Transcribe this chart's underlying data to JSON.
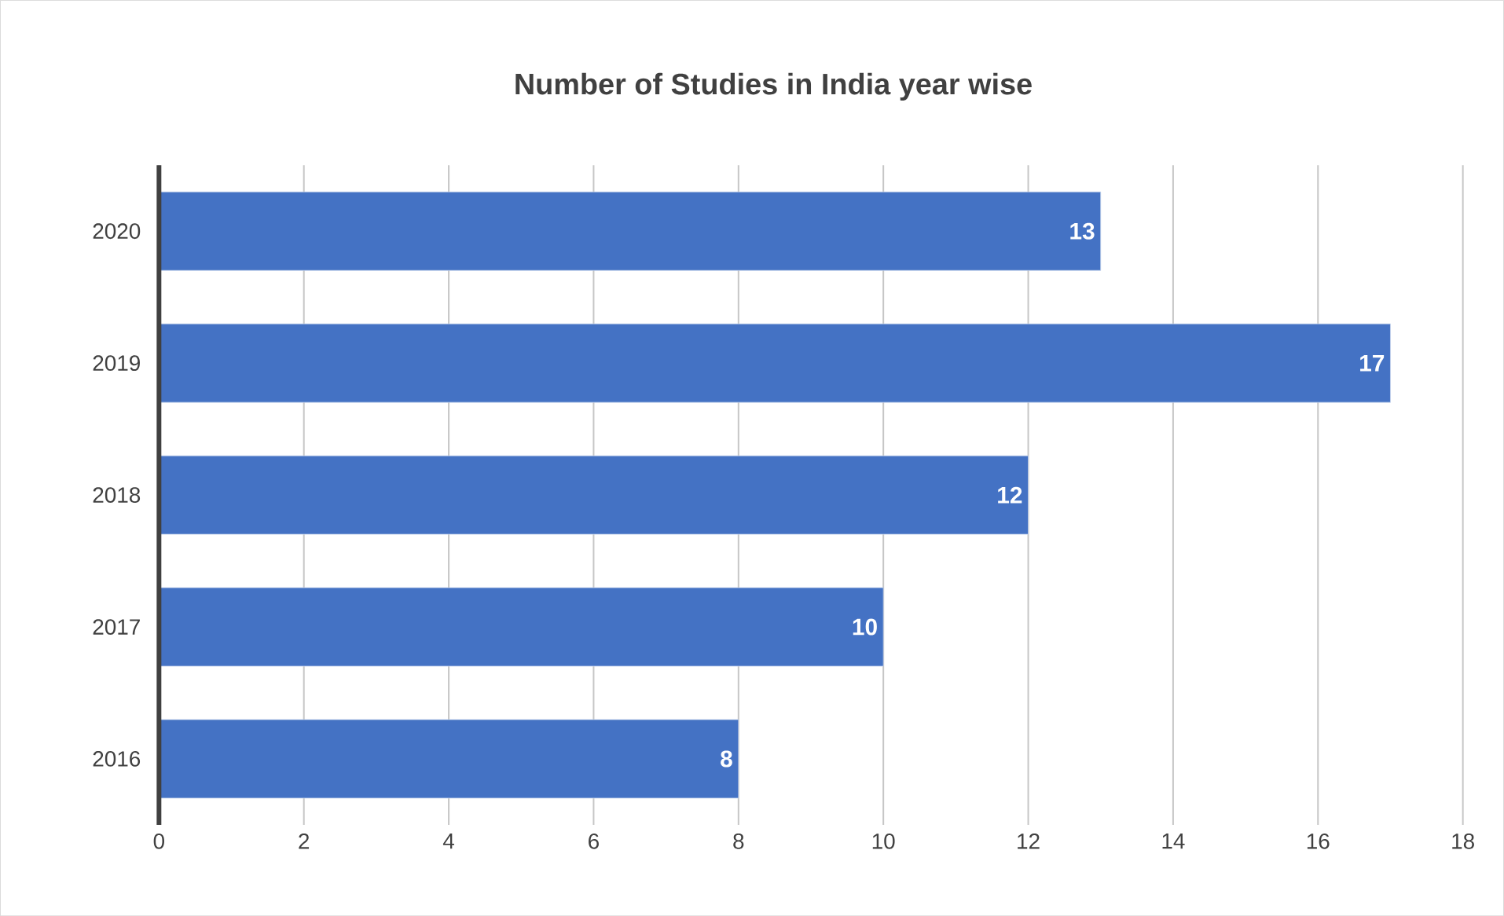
{
  "chart_data": {
    "type": "bar",
    "orientation": "horizontal",
    "title": "Number of Studies in India year wise",
    "categories": [
      "2020",
      "2019",
      "2018",
      "2017",
      "2016"
    ],
    "values": [
      13,
      17,
      12,
      10,
      8
    ],
    "color": "#4472c4",
    "xlim": [
      0,
      18
    ],
    "xticks": [
      0,
      2,
      4,
      6,
      8,
      10,
      12,
      14,
      16,
      18
    ],
    "grid": "x",
    "data_labels": true
  }
}
